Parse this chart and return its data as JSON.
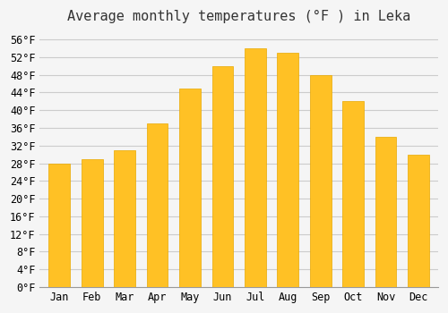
{
  "title": "Average monthly temperatures (°F ) in Leka",
  "months": [
    "Jan",
    "Feb",
    "Mar",
    "Apr",
    "May",
    "Jun",
    "Jul",
    "Aug",
    "Sep",
    "Oct",
    "Nov",
    "Dec"
  ],
  "values": [
    28,
    29,
    31,
    37,
    45,
    50,
    54,
    53,
    48,
    42,
    34,
    30
  ],
  "bar_color_top": "#FFC125",
  "bar_color_bottom": "#FFD966",
  "bar_edge_color": "#E8A800",
  "background_color": "#F5F5F5",
  "grid_color": "#CCCCCC",
  "title_fontsize": 11,
  "tick_fontsize": 8.5,
  "ylim_min": 0,
  "ylim_max": 58,
  "ytick_step": 4
}
